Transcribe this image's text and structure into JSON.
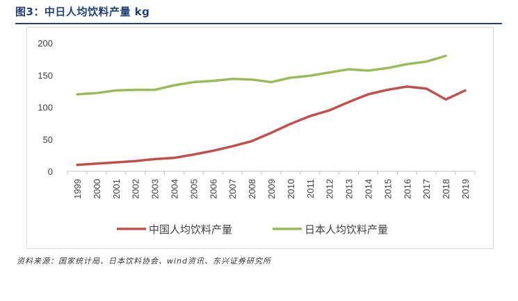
{
  "header": {
    "title": "图3：中日人均饮料产量 kg"
  },
  "footer": {
    "source": "资料来源：国家统计局、日本饮料协会、wind资讯、东兴证券研究所"
  },
  "chart_data": {
    "type": "line",
    "title": "",
    "xlabel": "",
    "ylabel": "",
    "ylim": [
      0,
      200
    ],
    "yticks": [
      0,
      50,
      100,
      150,
      200
    ],
    "grid": true,
    "legend": "bottom",
    "categories": [
      "1999",
      "2000",
      "2001",
      "2002",
      "2003",
      "2004",
      "2005",
      "2006",
      "2007",
      "2008",
      "2009",
      "2010",
      "2011",
      "2012",
      "2013",
      "2014",
      "2015",
      "2016",
      "2017",
      "2018",
      "2019"
    ],
    "series": [
      {
        "name": "中国人均饮料产量",
        "color": "#c0504d",
        "values": [
          10,
          12,
          14,
          16,
          19,
          21,
          26,
          32,
          39,
          47,
          60,
          74,
          86,
          95,
          108,
          120,
          127,
          132,
          129,
          112,
          126
        ]
      },
      {
        "name": "日本人均饮料产量",
        "color": "#9bbb59",
        "values": [
          120,
          122,
          126,
          127,
          127,
          134,
          139,
          141,
          144,
          143,
          139,
          146,
          149,
          154,
          159,
          157,
          161,
          167,
          171,
          180,
          null
        ]
      }
    ]
  }
}
